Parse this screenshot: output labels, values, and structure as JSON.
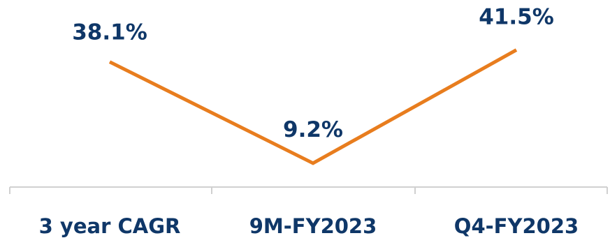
{
  "chart_data": {
    "type": "line",
    "title": "",
    "xlabel": "",
    "ylabel": "",
    "categories": [
      "3 year CAGR",
      "9M-FY2023",
      "Q4-FY2023"
    ],
    "values": [
      38.1,
      9.2,
      41.5
    ],
    "data_labels": [
      "38.1%",
      "9.2%",
      "41.5%"
    ],
    "ylim": [
      0,
      45
    ],
    "grid": false,
    "line_color": "#e87d1e",
    "label_color": "#0f3768",
    "axis_color": "#d0d0d0"
  }
}
